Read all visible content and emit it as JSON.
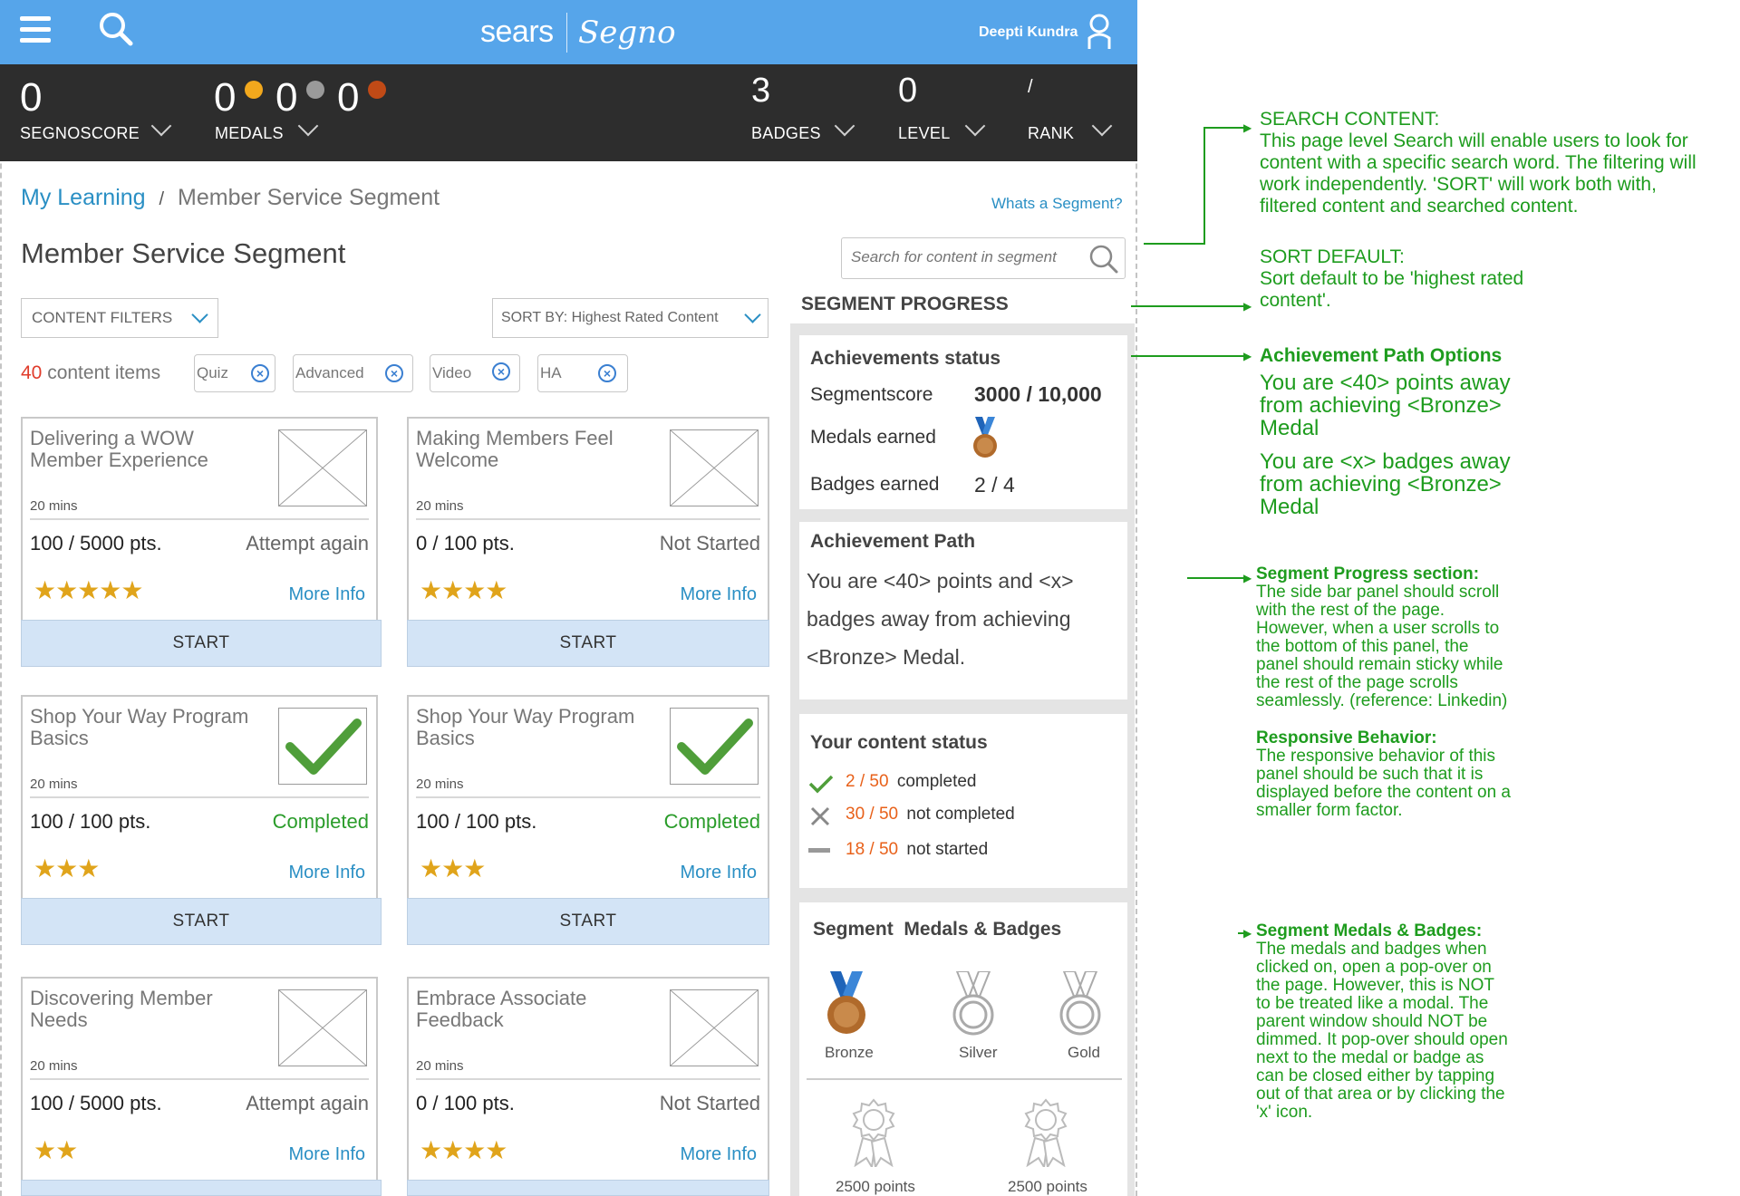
{
  "header": {
    "brand_left": "sears",
    "brand_right": "Segno",
    "user_name": "Deepti Kundra"
  },
  "stats": {
    "segnoscore": {
      "value": "0",
      "label": "SEGNOSCORE"
    },
    "medals": {
      "gold": "0",
      "silver": "0",
      "bronze": "0",
      "label": "MEDALS"
    },
    "badges": {
      "value": "3",
      "label": "BADGES"
    },
    "level": {
      "value": "0",
      "label": "LEVEL"
    },
    "rank": {
      "value": "/",
      "label": "RANK"
    }
  },
  "breadcrumb": {
    "root": "My Learning",
    "separator": "/",
    "current": "Member Service Segment"
  },
  "whats_segment": "Whats a Segment?",
  "page_title": "Member Service Segment",
  "search": {
    "placeholder": "Search for content in segment"
  },
  "filters": {
    "content_filters_label": "CONTENT FILTERS",
    "sort_label": "SORT BY: Highest Rated Content",
    "count": "40",
    "count_suffix": "content items",
    "chips": [
      "Quiz",
      "Advanced",
      "Video",
      "HA"
    ]
  },
  "cards": [
    {
      "title": "Delivering a WOW Member Experience",
      "duration": "20 mins",
      "points": "100 / 5000 pts.",
      "status": "Attempt again",
      "stars": "★★★★★",
      "more": "More Info",
      "start": "START",
      "thumb": "placeholder"
    },
    {
      "title": "Making Members Feel Welcome",
      "duration": "20 mins",
      "points": "0 / 100 pts.",
      "status": "Not Started",
      "stars": "★★★★",
      "more": "More Info",
      "start": "START",
      "thumb": "placeholder"
    },
    {
      "title": "Shop Your Way Program Basics",
      "duration": "20 mins",
      "points": "100 / 100 pts.",
      "status": "Completed",
      "stars": "★★★",
      "more": "More Info",
      "start": "START",
      "thumb": "check"
    },
    {
      "title": "Shop Your Way Program Basics",
      "duration": "20 mins",
      "points": "100 / 100 pts.",
      "status": "Completed",
      "stars": "★★★",
      "more": "More Info",
      "start": "START",
      "thumb": "check"
    },
    {
      "title": "Discovering Member Needs",
      "duration": "20 mins",
      "points": "100 / 5000 pts.",
      "status": "Attempt again",
      "stars": "★★",
      "more": "More Info",
      "thumb": "placeholder"
    },
    {
      "title": "Embrace Associate Feedback",
      "duration": "20 mins",
      "points": "0 / 100 pts.",
      "status": "Not Started",
      "stars": "★★★★",
      "more": "More Info",
      "thumb": "placeholder"
    }
  ],
  "segment_progress": {
    "heading": "SEGMENT PROGRESS",
    "achievements": {
      "heading": "Achievements status",
      "segmentscore_label": "Segmentscore",
      "segmentscore_value": "3000 / 10,000",
      "medals_label": "Medals earned",
      "badges_label": "Badges earned",
      "badges_value": "2 / 4"
    },
    "path": {
      "heading": "Achievement Path",
      "line1": "You are <40> points and <x>",
      "line2": "badges away from achieving",
      "line3": "<Bronze> Medal."
    },
    "content_status": {
      "heading": "Your content status",
      "completed_num": "2 / 50",
      "completed_txt": "completed",
      "notcompleted_num": "30 / 50",
      "notcompleted_txt": "not completed",
      "notstarted_num": "18 / 50",
      "notstarted_txt": "not started"
    },
    "medals_badges": {
      "heading": "Segment  Medals & Badges",
      "bronze": "Bronze",
      "silver": "Silver",
      "gold": "Gold",
      "badge1": "2500 points",
      "badge2": "2500 points"
    }
  },
  "notes": {
    "search_h": "SEARCH CONTENT:",
    "search_1": "This page level Search will enable users to look for",
    "search_2": "content with a specific search word. The filtering will",
    "search_3": "work independently. 'SORT' will work both with,",
    "search_4": "filtered content and searched content.",
    "sort_h": "SORT DEFAULT:",
    "sort_1": "Sort default to be 'highest rated",
    "sort_2": "content'.",
    "path_h": "Achievement Path Options",
    "path_1": "You are <40> points away",
    "path_2": "from achieving <Bronze>",
    "path_3": "Medal",
    "path_4": "You are <x> badges away",
    "path_5": "from achieving <Bronze>",
    "path_6": "Medal",
    "progress_h": "Segment Progress section:",
    "progress_1": "The side bar panel should scroll",
    "progress_2": "with the rest of the page.",
    "progress_3": "However, when a user scrolls to",
    "progress_4": "the bottom of this panel, the",
    "progress_5": "panel should remain sticky while",
    "progress_6": "the rest of the page scrolls",
    "progress_7": "seamlessly. (reference: Linkedin)",
    "resp_h": "Responsive Behavior:",
    "resp_1": "The responsive behavior of this",
    "resp_2": "panel should be such that it is",
    "resp_3": "displayed before the content on a",
    "resp_4": "smaller form factor.",
    "medal_h": "Segment Medals & Badges:",
    "medal_1": "The medals and badges when",
    "medal_2": "clicked on, open a pop-over on",
    "medal_3": "the page. However, this is NOT",
    "medal_4": "to be treated like a modal. The",
    "medal_5": "parent window should NOT be",
    "medal_6": "dimmed. It pop-over should open",
    "medal_7": "next to the medal or badge as",
    "medal_8": "can be closed either by tapping",
    "medal_9": "out of that area or by clicking the",
    "medal_10": "'x' icon."
  },
  "colors": {
    "topbar": "#56a5ea",
    "statbar": "#2d2d2d",
    "link": "#2a8fc4",
    "annotation": "#1e9c1e",
    "count_red": "#e03c2b",
    "status_orange": "#e8611a",
    "star": "#e0a41b"
  }
}
